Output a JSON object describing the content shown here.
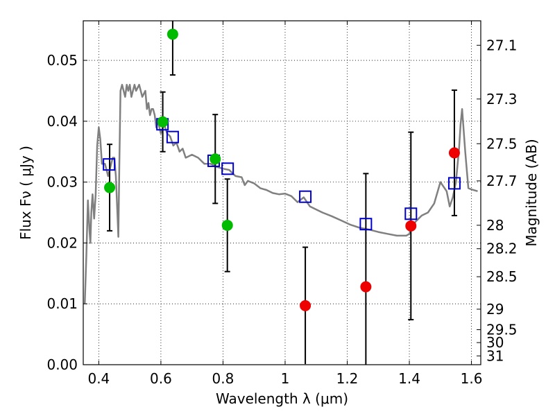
{
  "chart_data": {
    "type": "scatter",
    "title": "",
    "xlabel": "Wavelength  λ (μm)",
    "ylabel": "Flux  Fν ( μJy )",
    "y2label": "Magnitude (AB)",
    "xlim": [
      0.35,
      1.63
    ],
    "ylim": [
      0.0,
      0.0565
    ],
    "grid": true,
    "x_ticks": [
      0.4,
      0.6,
      0.8,
      1.0,
      1.2,
      1.4,
      1.6
    ],
    "x_tick_labels": [
      "0.4",
      "0.6",
      "0.8",
      "1",
      "1.2",
      "1.4",
      "1.6"
    ],
    "y_ticks": [
      0.0,
      0.01,
      0.02,
      0.03,
      0.04,
      0.05
    ],
    "y_tick_labels": [
      "0.00",
      "0.01",
      "0.02",
      "0.03",
      "0.04",
      "0.05"
    ],
    "y2_ticks": [
      27.1,
      27.3,
      27.5,
      27.7,
      28,
      28.2,
      28.5,
      29,
      29.5,
      30,
      31
    ],
    "y2_tick_labels": [
      "27.1",
      "27.3",
      "27.5",
      "27.7",
      "28",
      "28.2",
      "28.5",
      "29",
      "29.5",
      "30",
      "31"
    ],
    "colors": {
      "green": "#00bb00",
      "red": "#ee0000",
      "model_line": "#808080",
      "box": "#0000cc",
      "errorbar": "#000000"
    },
    "series": [
      {
        "kind": "model_spectrum",
        "x": [
          0.355,
          0.36,
          0.365,
          0.37,
          0.373,
          0.376,
          0.38,
          0.385,
          0.39,
          0.395,
          0.4,
          0.405,
          0.41,
          0.415,
          0.42,
          0.425,
          0.43,
          0.435,
          0.44,
          0.445,
          0.45,
          0.455,
          0.46,
          0.463,
          0.466,
          0.47,
          0.475,
          0.48,
          0.485,
          0.49,
          0.495,
          0.5,
          0.505,
          0.51,
          0.515,
          0.52,
          0.53,
          0.54,
          0.55,
          0.555,
          0.56,
          0.565,
          0.57,
          0.575,
          0.58,
          0.585,
          0.59,
          0.6,
          0.61,
          0.62,
          0.63,
          0.64,
          0.65,
          0.66,
          0.67,
          0.68,
          0.7,
          0.72,
          0.74,
          0.76,
          0.78,
          0.8,
          0.82,
          0.84,
          0.86,
          0.87,
          0.88,
          0.9,
          0.92,
          0.94,
          0.96,
          0.98,
          1.0,
          1.02,
          1.04,
          1.06,
          1.08,
          1.1,
          1.12,
          1.15,
          1.18,
          1.21,
          1.24,
          1.27,
          1.3,
          1.33,
          1.36,
          1.39,
          1.4,
          1.42,
          1.44,
          1.46,
          1.48,
          1.5,
          1.52,
          1.53,
          1.54,
          1.55,
          1.56,
          1.565,
          1.57,
          1.58,
          1.59,
          1.6,
          1.62
        ],
        "y": [
          0.01,
          0.018,
          0.027,
          0.022,
          0.02,
          0.025,
          0.028,
          0.024,
          0.028,
          0.036,
          0.039,
          0.037,
          0.033,
          0.033,
          0.033,
          0.032,
          0.031,
          0.032,
          0.033,
          0.034,
          0.034,
          0.031,
          0.025,
          0.021,
          0.032,
          0.045,
          0.046,
          0.045,
          0.044,
          0.046,
          0.045,
          0.046,
          0.044,
          0.045,
          0.046,
          0.045,
          0.046,
          0.044,
          0.045,
          0.042,
          0.043,
          0.041,
          0.042,
          0.042,
          0.041,
          0.039,
          0.04,
          0.038,
          0.0395,
          0.038,
          0.0375,
          0.036,
          0.0365,
          0.035,
          0.0355,
          0.034,
          0.0345,
          0.034,
          0.033,
          0.033,
          0.0325,
          0.0322,
          0.032,
          0.031,
          0.0308,
          0.0295,
          0.0302,
          0.0298,
          0.029,
          0.0287,
          0.0282,
          0.028,
          0.0281,
          0.0277,
          0.0267,
          0.0275,
          0.026,
          0.0255,
          0.025,
          0.0244,
          0.0237,
          0.023,
          0.0225,
          0.0222,
          0.0218,
          0.0215,
          0.0212,
          0.0212,
          0.0215,
          0.0235,
          0.0245,
          0.025,
          0.0265,
          0.03,
          0.0285,
          0.026,
          0.0275,
          0.03,
          0.0355,
          0.0395,
          0.042,
          0.035,
          0.029,
          0.0288,
          0.0285
        ]
      },
      {
        "kind": "model_photometry",
        "marker": "open-square",
        "x": [
          0.433,
          0.605,
          0.638,
          0.77,
          0.815,
          1.065,
          1.26,
          1.405,
          1.545
        ],
        "y": [
          0.0329,
          0.0395,
          0.0374,
          0.0335,
          0.0322,
          0.0276,
          0.0231,
          0.0248,
          0.0298
        ]
      },
      {
        "kind": "observed",
        "marker": "filled-circle",
        "color": "green",
        "x": [
          0.435,
          0.606,
          0.638,
          0.775,
          0.814
        ],
        "y": [
          0.0291,
          0.0399,
          0.0543,
          0.0338,
          0.0229
        ],
        "err": [
          0.0071,
          0.0049,
          0.0067,
          0.0073,
          0.0076
        ]
      },
      {
        "kind": "observed",
        "marker": "filled-circle",
        "color": "red",
        "x": [
          1.065,
          1.26,
          1.405,
          1.545
        ],
        "y": [
          0.0097,
          0.0128,
          0.0228,
          0.0348
        ],
        "err": [
          0.0096,
          0.0186,
          0.0154,
          0.0103
        ]
      }
    ]
  }
}
